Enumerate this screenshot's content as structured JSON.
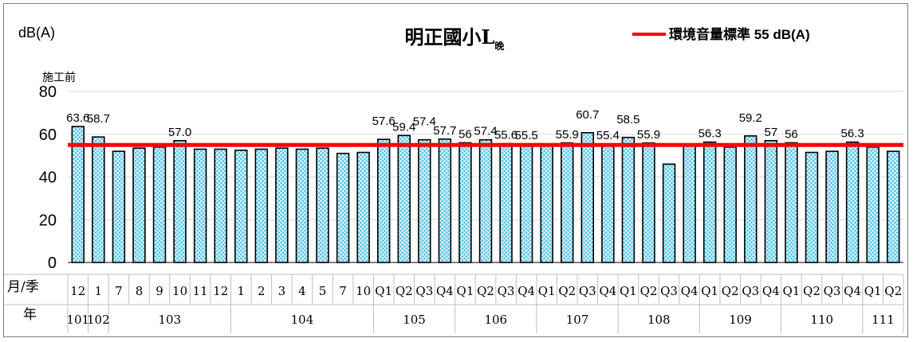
{
  "chart_data": {
    "type": "bar",
    "title": "明正國小L",
    "title_subscript": "晚",
    "y_unit_label": "dB(A)",
    "ylim": [
      0,
      80
    ],
    "y_ticks": [
      0,
      20,
      40,
      60,
      80
    ],
    "grid": true,
    "legend": {
      "position": "top-right",
      "entries": [
        {
          "label": "環境音量標準 55 dB(A)",
          "type": "line",
          "color": "#ff0000"
        }
      ]
    },
    "standard_line": {
      "value": 55,
      "color": "#ff0000"
    },
    "bar_color": "#4fc3e8",
    "bar_border": "#000000",
    "row_labels": {
      "period": "月/季",
      "year": "年"
    },
    "annotation": "施工前",
    "categories": [
      "12",
      "1",
      "7",
      "8",
      "9",
      "10",
      "11",
      "12",
      "1",
      "2",
      "3",
      "4",
      "5",
      "7",
      "10",
      "Q1",
      "Q2",
      "Q3",
      "Q4",
      "Q1",
      "Q2",
      "Q3",
      "Q4",
      "Q1",
      "Q2",
      "Q3",
      "Q4",
      "Q1",
      "Q2",
      "Q3",
      "Q4",
      "Q1",
      "Q2",
      "Q3",
      "Q4",
      "Q1",
      "Q2",
      "Q3",
      "Q4",
      "Q1",
      "Q2"
    ],
    "values": [
      63.6,
      58.7,
      52,
      53.5,
      54,
      57.0,
      53,
      53,
      52.5,
      53,
      53.5,
      53,
      53.5,
      51,
      51.5,
      57.6,
      59.4,
      57.4,
      57.7,
      56,
      57.4,
      55.6,
      55.5,
      55,
      55.9,
      60.7,
      55.4,
      58.5,
      55.9,
      46,
      55,
      56.3,
      54,
      59.2,
      57,
      56,
      51.5,
      52,
      56.3,
      54,
      52
    ],
    "data_labels": [
      "63.6",
      "58.7",
      "",
      "",
      "",
      "57.0",
      "",
      "",
      "",
      "",
      "",
      "",
      "",
      "",
      "",
      "57.6",
      "59.4",
      "57.4",
      "57.7",
      "56",
      "57.4",
      "55.6",
      "55.5",
      "",
      "55.9",
      "60.7",
      "55.4",
      "58.5",
      "55.9",
      "",
      "",
      "56.3",
      "",
      "59.2",
      "57",
      "56",
      "",
      "",
      "56.3",
      "",
      ""
    ],
    "years": [
      {
        "label": "101",
        "start": 0,
        "end": 0
      },
      {
        "label": "102",
        "start": 1,
        "end": 1
      },
      {
        "label": "103",
        "start": 2,
        "end": 7
      },
      {
        "label": "104",
        "start": 8,
        "end": 14
      },
      {
        "label": "105",
        "start": 15,
        "end": 18
      },
      {
        "label": "106",
        "start": 19,
        "end": 22
      },
      {
        "label": "107",
        "start": 23,
        "end": 26
      },
      {
        "label": "108",
        "start": 27,
        "end": 30
      },
      {
        "label": "109",
        "start": 31,
        "end": 34
      },
      {
        "label": "110",
        "start": 35,
        "end": 38
      },
      {
        "label": "111",
        "start": 39,
        "end": 40
      }
    ]
  }
}
